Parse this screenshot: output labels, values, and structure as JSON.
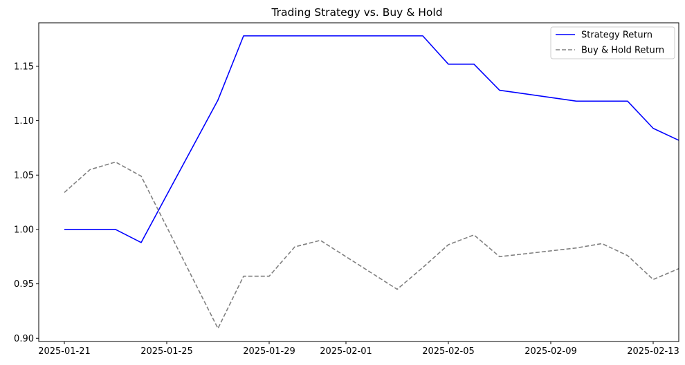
{
  "chart_data": {
    "type": "line",
    "title": "Trading Strategy vs. Buy & Hold",
    "xlabel": "",
    "ylabel": "",
    "xlim": [
      "2025-01-20",
      "2025-02-14"
    ],
    "ylim": [
      0.897,
      1.19
    ],
    "x_ticks": [
      "2025-01-21",
      "2025-01-25",
      "2025-01-29",
      "2025-02-01",
      "2025-02-05",
      "2025-02-09",
      "2025-02-13"
    ],
    "y_ticks": [
      "0.90",
      "0.95",
      "1.00",
      "1.05",
      "1.10",
      "1.15"
    ],
    "legend_position": "top-right",
    "grid": false,
    "series": [
      {
        "name": "Strategy Return",
        "color": "#0000ff",
        "line_style": "solid",
        "x": [
          "2025-01-21",
          "2025-01-22",
          "2025-01-23",
          "2025-01-24",
          "2025-01-27",
          "2025-01-28",
          "2025-01-29",
          "2025-01-30",
          "2025-01-31",
          "2025-02-03",
          "2025-02-04",
          "2025-02-05",
          "2025-02-06",
          "2025-02-07",
          "2025-02-10",
          "2025-02-11",
          "2025-02-12",
          "2025-02-13",
          "2025-02-14"
        ],
        "values": [
          1.0,
          1.0,
          1.0,
          0.988,
          1.119,
          1.178,
          1.178,
          1.178,
          1.178,
          1.178,
          1.178,
          1.152,
          1.152,
          1.128,
          1.118,
          1.118,
          1.118,
          1.093,
          1.082
        ]
      },
      {
        "name": "Buy & Hold Return",
        "color": "#808080",
        "line_style": "dashed",
        "x": [
          "2025-01-21",
          "2025-01-22",
          "2025-01-23",
          "2025-01-24",
          "2025-01-27",
          "2025-01-28",
          "2025-01-29",
          "2025-01-30",
          "2025-01-31",
          "2025-02-03",
          "2025-02-04",
          "2025-02-05",
          "2025-02-06",
          "2025-02-07",
          "2025-02-10",
          "2025-02-11",
          "2025-02-12",
          "2025-02-13",
          "2025-02-14"
        ],
        "values": [
          1.034,
          1.055,
          1.062,
          1.049,
          0.909,
          0.957,
          0.957,
          0.984,
          0.99,
          0.945,
          0.965,
          0.986,
          0.995,
          0.975,
          0.983,
          0.987,
          0.976,
          0.954,
          0.964
        ]
      }
    ]
  }
}
